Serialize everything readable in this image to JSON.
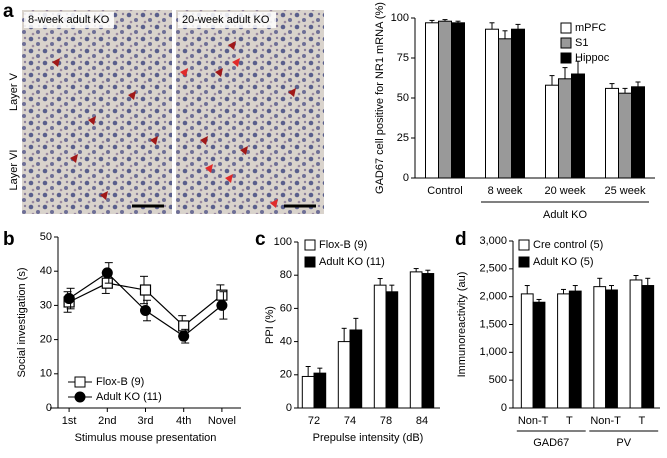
{
  "panels": [
    "a",
    "b",
    "c",
    "d"
  ],
  "micrographs": {
    "titles": [
      "8-week adult KO",
      "20-week adult KO"
    ],
    "layers": [
      "Layer V",
      "Layer VI"
    ]
  },
  "chart_data": [
    {
      "type": "bar",
      "ylabel": "GAD67 cell positive for NR1 mRNA (%)",
      "categories": [
        "Control",
        "8 week",
        "20 week",
        "25 week"
      ],
      "group_label": "Adult KO",
      "series": [
        {
          "name": "mPFC",
          "color": "#ffffff",
          "values": [
            97,
            93,
            58,
            56
          ],
          "errors": [
            1.5,
            4,
            6,
            3
          ]
        },
        {
          "name": "S1",
          "color": "#999999",
          "values": [
            98,
            87,
            62,
            53
          ],
          "errors": [
            1,
            5,
            7,
            3
          ]
        },
        {
          "name": "Hippoc",
          "color": "#000000",
          "values": [
            97,
            93,
            65,
            57
          ],
          "errors": [
            1,
            3,
            8,
            3
          ]
        }
      ],
      "ylim": [
        0,
        100
      ],
      "yticks": [
        0,
        25,
        50,
        75,
        100
      ],
      "legend": "upper-right"
    },
    {
      "type": "line",
      "ylabel": "Social investigation (s)",
      "xlabel": "Stimulus mouse presentation",
      "categories": [
        "1st",
        "2nd",
        "3rd",
        "4th",
        "Novel"
      ],
      "series": [
        {
          "name": "Flox-B (9)",
          "color": "#ffffff",
          "marker": "square",
          "values": [
            31,
            36.5,
            34.5,
            24,
            33
          ],
          "errors": [
            3,
            3,
            4,
            3,
            3
          ]
        },
        {
          "name": "Adult KO (11)",
          "color": "#000000",
          "marker": "circle",
          "values": [
            32,
            39.5,
            28.5,
            21,
            30
          ],
          "errors": [
            3,
            3,
            3,
            2,
            4
          ]
        }
      ],
      "ylim": [
        0,
        50
      ],
      "yticks": [
        0,
        10,
        20,
        30,
        40,
        50
      ],
      "legend": "lower-left"
    },
    {
      "type": "bar",
      "ylabel": "PPI (%)",
      "xlabel": "Prepulse intensity (dB)",
      "categories": [
        "72",
        "74",
        "78",
        "84"
      ],
      "series": [
        {
          "name": "Flox-B (9)",
          "color": "#ffffff",
          "values": [
            19,
            40,
            74,
            82
          ],
          "errors": [
            6,
            8,
            4,
            2
          ]
        },
        {
          "name": "Adult KO (11)",
          "color": "#000000",
          "values": [
            21,
            47,
            70,
            81
          ],
          "errors": [
            3,
            7,
            4,
            2
          ]
        }
      ],
      "ylim": [
        0,
        100
      ],
      "yticks": [
        0,
        20,
        40,
        60,
        80,
        100
      ],
      "legend": "upper-left"
    },
    {
      "type": "bar",
      "ylabel": "Immunoreactivity (au)",
      "categories": [
        "Non-T",
        "T",
        "Non-T",
        "T"
      ],
      "groups": [
        "GAD67",
        "PV"
      ],
      "series": [
        {
          "name": "Cre control (5)",
          "color": "#ffffff",
          "values": [
            2050,
            2050,
            2180,
            2300
          ],
          "errors": [
            150,
            80,
            150,
            80
          ]
        },
        {
          "name": "Adult KO (5)",
          "color": "#000000",
          "values": [
            1900,
            2100,
            2120,
            2200
          ],
          "errors": [
            50,
            100,
            80,
            130
          ]
        }
      ],
      "ylim": [
        0,
        3000
      ],
      "yticks": [
        0,
        500,
        {
          "value": 1000,
          "label": "1,000"
        },
        {
          "value": 1500,
          "label": "1,500"
        },
        {
          "value": 2000,
          "label": "2,000"
        },
        {
          "value": 2500,
          "label": "2,500"
        },
        {
          "value": 3000,
          "label": "3,000"
        }
      ],
      "legend": "upper-left"
    }
  ]
}
